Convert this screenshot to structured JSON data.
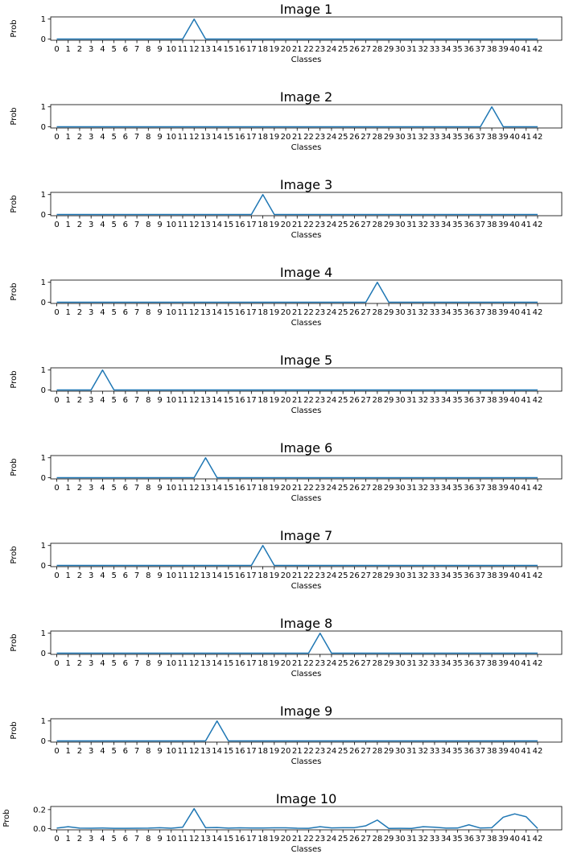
{
  "chart_data": [
    {
      "type": "line",
      "title": "Image 1",
      "xlabel": "Classes",
      "ylabel": "Prob",
      "x": [
        0,
        1,
        2,
        3,
        4,
        5,
        6,
        7,
        8,
        9,
        10,
        11,
        12,
        13,
        14,
        15,
        16,
        17,
        18,
        19,
        20,
        21,
        22,
        23,
        24,
        25,
        26,
        27,
        28,
        29,
        30,
        31,
        32,
        33,
        34,
        35,
        36,
        37,
        38,
        39,
        40,
        41,
        42
      ],
      "yticks": [
        "0",
        "1"
      ],
      "ylim": [
        0,
        1.05
      ],
      "values": [
        0,
        0,
        0,
        0,
        0,
        0,
        0,
        0,
        0,
        0,
        0,
        0,
        1,
        0,
        0,
        0,
        0,
        0,
        0,
        0,
        0,
        0,
        0,
        0,
        0,
        0,
        0,
        0,
        0,
        0,
        0,
        0,
        0,
        0,
        0,
        0,
        0,
        0,
        0,
        0,
        0,
        0,
        0
      ]
    },
    {
      "type": "line",
      "title": "Image 2",
      "xlabel": "Classes",
      "ylabel": "Prob",
      "x": [
        0,
        1,
        2,
        3,
        4,
        5,
        6,
        7,
        8,
        9,
        10,
        11,
        12,
        13,
        14,
        15,
        16,
        17,
        18,
        19,
        20,
        21,
        22,
        23,
        24,
        25,
        26,
        27,
        28,
        29,
        30,
        31,
        32,
        33,
        34,
        35,
        36,
        37,
        38,
        39,
        40,
        41,
        42
      ],
      "yticks": [
        "0",
        "1"
      ],
      "ylim": [
        0,
        1.05
      ],
      "values": [
        0,
        0,
        0,
        0,
        0,
        0,
        0,
        0,
        0,
        0,
        0,
        0,
        0,
        0,
        0,
        0,
        0,
        0,
        0,
        0,
        0,
        0,
        0,
        0,
        0,
        0,
        0,
        0,
        0,
        0,
        0,
        0,
        0,
        0,
        0,
        0,
        0,
        0,
        1,
        0,
        0,
        0,
        0
      ]
    },
    {
      "type": "line",
      "title": "Image 3",
      "xlabel": "Classes",
      "ylabel": "Prob",
      "x": [
        0,
        1,
        2,
        3,
        4,
        5,
        6,
        7,
        8,
        9,
        10,
        11,
        12,
        13,
        14,
        15,
        16,
        17,
        18,
        19,
        20,
        21,
        22,
        23,
        24,
        25,
        26,
        27,
        28,
        29,
        30,
        31,
        32,
        33,
        34,
        35,
        36,
        37,
        38,
        39,
        40,
        41,
        42
      ],
      "yticks": [
        "0",
        "1"
      ],
      "ylim": [
        0,
        1.05
      ],
      "values": [
        0,
        0,
        0,
        0,
        0,
        0,
        0,
        0,
        0,
        0,
        0,
        0,
        0,
        0,
        0,
        0,
        0,
        0,
        1,
        0,
        0,
        0,
        0,
        0,
        0,
        0,
        0,
        0,
        0,
        0,
        0,
        0,
        0,
        0,
        0,
        0,
        0,
        0,
        0,
        0,
        0,
        0,
        0
      ]
    },
    {
      "type": "line",
      "title": "Image 4",
      "xlabel": "Classes",
      "ylabel": "Prob",
      "x": [
        0,
        1,
        2,
        3,
        4,
        5,
        6,
        7,
        8,
        9,
        10,
        11,
        12,
        13,
        14,
        15,
        16,
        17,
        18,
        19,
        20,
        21,
        22,
        23,
        24,
        25,
        26,
        27,
        28,
        29,
        30,
        31,
        32,
        33,
        34,
        35,
        36,
        37,
        38,
        39,
        40,
        41,
        42
      ],
      "yticks": [
        "0",
        "1"
      ],
      "ylim": [
        0,
        1.05
      ],
      "values": [
        0,
        0,
        0,
        0,
        0,
        0,
        0,
        0,
        0,
        0,
        0,
        0,
        0,
        0,
        0,
        0,
        0,
        0,
        0,
        0,
        0,
        0,
        0,
        0,
        0,
        0,
        0,
        0,
        1,
        0,
        0,
        0,
        0,
        0,
        0,
        0,
        0,
        0,
        0,
        0,
        0,
        0,
        0
      ]
    },
    {
      "type": "line",
      "title": "Image 5",
      "xlabel": "Classes",
      "ylabel": "Prob",
      "x": [
        0,
        1,
        2,
        3,
        4,
        5,
        6,
        7,
        8,
        9,
        10,
        11,
        12,
        13,
        14,
        15,
        16,
        17,
        18,
        19,
        20,
        21,
        22,
        23,
        24,
        25,
        26,
        27,
        28,
        29,
        30,
        31,
        32,
        33,
        34,
        35,
        36,
        37,
        38,
        39,
        40,
        41,
        42
      ],
      "yticks": [
        "0",
        "1"
      ],
      "ylim": [
        0,
        1.05
      ],
      "values": [
        0,
        0,
        0,
        0,
        1,
        0,
        0,
        0,
        0,
        0,
        0,
        0,
        0,
        0,
        0,
        0,
        0,
        0,
        0,
        0,
        0,
        0,
        0,
        0,
        0,
        0,
        0,
        0,
        0,
        0,
        0,
        0,
        0,
        0,
        0,
        0,
        0,
        0,
        0,
        0,
        0,
        0,
        0
      ]
    },
    {
      "type": "line",
      "title": "Image 6",
      "xlabel": "Classes",
      "ylabel": "Prob",
      "x": [
        0,
        1,
        2,
        3,
        4,
        5,
        6,
        7,
        8,
        9,
        10,
        11,
        12,
        13,
        14,
        15,
        16,
        17,
        18,
        19,
        20,
        21,
        22,
        23,
        24,
        25,
        26,
        27,
        28,
        29,
        30,
        31,
        32,
        33,
        34,
        35,
        36,
        37,
        38,
        39,
        40,
        41,
        42
      ],
      "yticks": [
        "0",
        "1"
      ],
      "ylim": [
        0,
        1.05
      ],
      "values": [
        0,
        0,
        0,
        0,
        0,
        0,
        0,
        0,
        0,
        0,
        0,
        0,
        0,
        1,
        0,
        0,
        0,
        0,
        0,
        0,
        0,
        0,
        0,
        0,
        0,
        0,
        0,
        0,
        0,
        0,
        0,
        0,
        0,
        0,
        0,
        0,
        0,
        0,
        0,
        0,
        0,
        0,
        0
      ]
    },
    {
      "type": "line",
      "title": "Image 7",
      "xlabel": "Classes",
      "ylabel": "Prob",
      "x": [
        0,
        1,
        2,
        3,
        4,
        5,
        6,
        7,
        8,
        9,
        10,
        11,
        12,
        13,
        14,
        15,
        16,
        17,
        18,
        19,
        20,
        21,
        22,
        23,
        24,
        25,
        26,
        27,
        28,
        29,
        30,
        31,
        32,
        33,
        34,
        35,
        36,
        37,
        38,
        39,
        40,
        41,
        42
      ],
      "yticks": [
        "0",
        "1"
      ],
      "ylim": [
        0,
        1.05
      ],
      "values": [
        0,
        0,
        0,
        0,
        0,
        0,
        0,
        0,
        0,
        0,
        0,
        0,
        0,
        0,
        0,
        0,
        0,
        0,
        1,
        0,
        0,
        0,
        0,
        0,
        0,
        0,
        0,
        0,
        0,
        0,
        0,
        0,
        0,
        0,
        0,
        0,
        0,
        0,
        0,
        0,
        0,
        0,
        0
      ]
    },
    {
      "type": "line",
      "title": "Image 8",
      "xlabel": "Classes",
      "ylabel": "Prob",
      "x": [
        0,
        1,
        2,
        3,
        4,
        5,
        6,
        7,
        8,
        9,
        10,
        11,
        12,
        13,
        14,
        15,
        16,
        17,
        18,
        19,
        20,
        21,
        22,
        23,
        24,
        25,
        26,
        27,
        28,
        29,
        30,
        31,
        32,
        33,
        34,
        35,
        36,
        37,
        38,
        39,
        40,
        41,
        42
      ],
      "yticks": [
        "0",
        "1"
      ],
      "ylim": [
        0,
        1.05
      ],
      "values": [
        0,
        0,
        0,
        0,
        0,
        0,
        0,
        0,
        0,
        0,
        0,
        0,
        0,
        0,
        0,
        0,
        0,
        0,
        0,
        0,
        0,
        0,
        0,
        1,
        0,
        0,
        0,
        0,
        0,
        0,
        0,
        0,
        0,
        0,
        0,
        0,
        0,
        0,
        0,
        0,
        0,
        0,
        0
      ]
    },
    {
      "type": "line",
      "title": "Image 9",
      "xlabel": "Classes",
      "ylabel": "Prob",
      "x": [
        0,
        1,
        2,
        3,
        4,
        5,
        6,
        7,
        8,
        9,
        10,
        11,
        12,
        13,
        14,
        15,
        16,
        17,
        18,
        19,
        20,
        21,
        22,
        23,
        24,
        25,
        26,
        27,
        28,
        29,
        30,
        31,
        32,
        33,
        34,
        35,
        36,
        37,
        38,
        39,
        40,
        41,
        42
      ],
      "yticks": [
        "0",
        "1"
      ],
      "ylim": [
        0,
        1.05
      ],
      "values": [
        0,
        0,
        0,
        0,
        0,
        0,
        0,
        0,
        0,
        0,
        0,
        0,
        0,
        0,
        1,
        0,
        0,
        0,
        0,
        0,
        0,
        0,
        0,
        0,
        0,
        0,
        0,
        0,
        0,
        0,
        0,
        0,
        0,
        0,
        0,
        0,
        0,
        0,
        0,
        0,
        0,
        0,
        0
      ]
    },
    {
      "type": "line",
      "title": "Image 10",
      "xlabel": "Classes",
      "ylabel": "Prob",
      "x": [
        0,
        1,
        2,
        3,
        4,
        5,
        6,
        7,
        8,
        9,
        10,
        11,
        12,
        13,
        14,
        15,
        16,
        17,
        18,
        19,
        20,
        21,
        22,
        23,
        24,
        25,
        26,
        27,
        28,
        29,
        30,
        31,
        32,
        33,
        34,
        35,
        36,
        37,
        38,
        39,
        40,
        41,
        42
      ],
      "yticks": [
        "0.0",
        "0.2"
      ],
      "ylim": [
        0,
        0.22
      ],
      "values": [
        0.005,
        0.02,
        0.005,
        0.004,
        0.006,
        0.003,
        0.003,
        0.004,
        0.005,
        0.01,
        0.004,
        0.015,
        0.21,
        0.01,
        0.012,
        0.005,
        0.008,
        0.006,
        0.006,
        0.008,
        0.008,
        0.004,
        0.003,
        0.02,
        0.007,
        0.01,
        0.01,
        0.03,
        0.09,
        0.002,
        0.003,
        0.002,
        0.02,
        0.015,
        0.005,
        0.006,
        0.04,
        0.006,
        0.01,
        0.12,
        0.155,
        0.125,
        0.002
      ]
    }
  ]
}
